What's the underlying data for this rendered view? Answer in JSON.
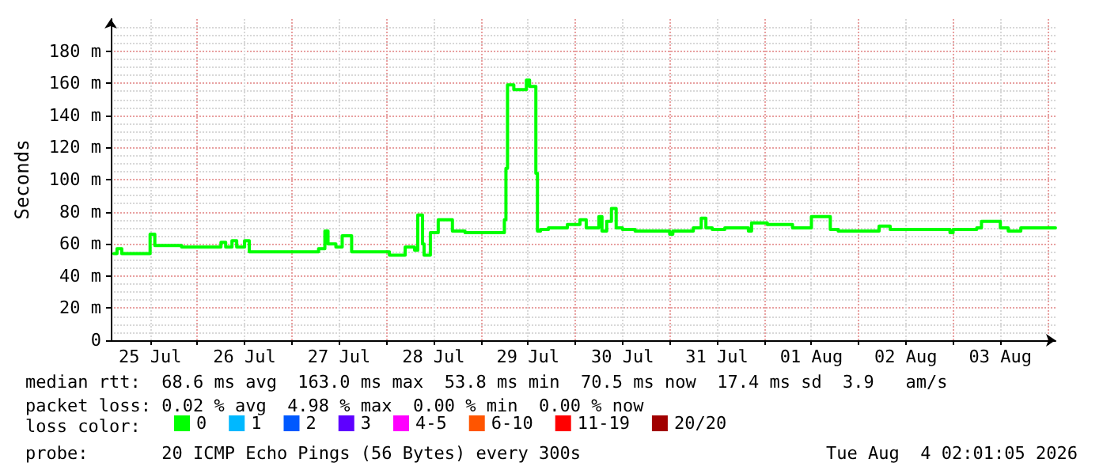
{
  "chart_data": {
    "type": "step",
    "ylabel": "Seconds",
    "legend_title": "loss color:",
    "legend": "bottom left",
    "marker": "none",
    "line_style": "solid",
    "grid": true,
    "x": [
      "2026-07-25T02:48",
      "2026-07-25T03:36",
      "2026-07-25T04:48",
      "2026-07-25T12:00",
      "2026-07-25T13:12",
      "2026-07-25T20:00",
      "2026-07-26T06:00",
      "2026-07-26T07:12",
      "2026-07-26T08:48",
      "2026-07-26T10:00",
      "2026-07-26T12:00",
      "2026-07-26T13:12",
      "2026-07-27T06:48",
      "2026-07-27T08:24",
      "2026-07-27T09:12",
      "2026-07-27T11:12",
      "2026-07-27T12:48",
      "2026-07-27T15:12",
      "2026-07-28T00:48",
      "2026-07-28T04:48",
      "2026-07-28T07:12",
      "2026-07-28T08:00",
      "2026-07-28T09:12",
      "2026-07-28T09:36",
      "2026-07-28T11:12",
      "2026-07-28T13:12",
      "2026-07-28T16:48",
      "2026-07-28T20:00",
      "2026-07-29T06:00",
      "2026-07-29T06:24",
      "2026-07-29T06:48",
      "2026-07-29T08:24",
      "2026-07-29T11:36",
      "2026-07-29T12:24",
      "2026-07-29T14:00",
      "2026-07-29T14:24",
      "2026-07-29T15:12",
      "2026-07-29T17:12",
      "2026-07-29T22:00",
      "2026-07-30T01:12",
      "2026-07-30T02:48",
      "2026-07-30T06:00",
      "2026-07-30T06:48",
      "2026-07-30T08:00",
      "2026-07-30T09:12",
      "2026-07-30T10:24",
      "2026-07-30T12:00",
      "2026-07-30T15:12",
      "2026-07-31T00:00",
      "2026-07-31T00:48",
      "2026-07-31T06:00",
      "2026-07-31T08:00",
      "2026-07-31T09:12",
      "2026-07-31T10:48",
      "2026-07-31T14:00",
      "2026-07-31T20:00",
      "2026-07-31T20:48",
      "2026-08-01T00:48",
      "2026-08-01T07:12",
      "2026-08-01T12:00",
      "2026-08-01T16:48",
      "2026-08-01T18:48",
      "2026-08-02T05:12",
      "2026-08-02T08:00",
      "2026-08-02T23:12",
      "2026-08-03T00:00",
      "2026-08-03T06:00",
      "2026-08-03T07:12",
      "2026-08-03T12:00",
      "2026-08-03T14:00",
      "2026-08-03T17:12",
      "2026-08-04T02:00"
    ],
    "series": [
      {
        "name": "0",
        "color": "#00ff00",
        "values": [
          54,
          57,
          54,
          66,
          59,
          58,
          61,
          58,
          62,
          58,
          62,
          55,
          57,
          68,
          60,
          58,
          65,
          55,
          53,
          58,
          56,
          78,
          60,
          53,
          67,
          75,
          68,
          67,
          75,
          107,
          159,
          156,
          162,
          158,
          104,
          68,
          69,
          70,
          72,
          75,
          70,
          77,
          68,
          74,
          82,
          70,
          69,
          68,
          66,
          68,
          70,
          76,
          70,
          69,
          70,
          68,
          73,
          72,
          70,
          77,
          69,
          68,
          71,
          69,
          67,
          69,
          70,
          74,
          70,
          68,
          70,
          70
        ]
      },
      {
        "name": "1",
        "color": "#00b8ff",
        "values": [
          null,
          null,
          null,
          null,
          null,
          null,
          null,
          null,
          null,
          null,
          null,
          null,
          null,
          null,
          null,
          null,
          null,
          null,
          null,
          null,
          null,
          null,
          null,
          null,
          null,
          null,
          null,
          null,
          null,
          null,
          null,
          null,
          null,
          null,
          null,
          null,
          null,
          null,
          null,
          null,
          null,
          null,
          null,
          null,
          null,
          null,
          null,
          null,
          null,
          null,
          null,
          null,
          null,
          null,
          null,
          null,
          null,
          null,
          null,
          null,
          null,
          null,
          null,
          null,
          null,
          null,
          null,
          null,
          null,
          null,
          null,
          null
        ]
      },
      {
        "name": "2",
        "color": "#0059ff",
        "values": [
          null,
          null,
          null,
          null,
          null,
          null,
          null,
          null,
          null,
          null,
          null,
          null,
          null,
          null,
          null,
          null,
          null,
          null,
          null,
          null,
          null,
          null,
          null,
          null,
          null,
          null,
          null,
          null,
          null,
          null,
          null,
          null,
          null,
          null,
          null,
          null,
          null,
          null,
          null,
          null,
          null,
          null,
          null,
          null,
          null,
          null,
          null,
          null,
          null,
          null,
          null,
          null,
          null,
          null,
          null,
          null,
          null,
          null,
          null,
          null,
          null,
          null,
          null,
          null,
          null,
          null,
          null,
          null,
          null,
          null,
          null,
          null
        ]
      },
      {
        "name": "3",
        "color": "#5e00ff",
        "values": [
          null,
          null,
          null,
          null,
          null,
          null,
          null,
          null,
          null,
          null,
          null,
          null,
          null,
          null,
          null,
          null,
          null,
          null,
          null,
          null,
          null,
          null,
          null,
          null,
          null,
          null,
          null,
          null,
          null,
          null,
          null,
          null,
          null,
          null,
          null,
          null,
          null,
          null,
          null,
          null,
          null,
          null,
          null,
          null,
          null,
          null,
          null,
          null,
          null,
          null,
          null,
          null,
          null,
          null,
          null,
          null,
          null,
          null,
          null,
          null,
          null,
          null,
          null,
          null,
          null,
          null,
          null,
          null,
          null,
          null,
          null,
          null
        ]
      },
      {
        "name": "4-5",
        "color": "#ff00ff",
        "values": [
          null,
          null,
          null,
          null,
          null,
          null,
          null,
          null,
          null,
          null,
          null,
          null,
          null,
          null,
          null,
          null,
          null,
          null,
          null,
          null,
          null,
          null,
          null,
          null,
          null,
          null,
          null,
          null,
          null,
          null,
          null,
          null,
          null,
          null,
          null,
          null,
          null,
          null,
          null,
          null,
          null,
          null,
          null,
          null,
          null,
          null,
          null,
          null,
          null,
          null,
          null,
          null,
          null,
          null,
          null,
          null,
          null,
          null,
          null,
          null,
          null,
          null,
          null,
          null,
          null,
          null,
          null,
          null,
          null,
          null,
          null,
          null
        ]
      },
      {
        "name": "6-10",
        "color": "#ff5500",
        "values": [
          null,
          null,
          null,
          null,
          null,
          null,
          null,
          null,
          null,
          null,
          null,
          null,
          null,
          null,
          null,
          null,
          null,
          null,
          null,
          null,
          null,
          null,
          null,
          null,
          null,
          null,
          null,
          null,
          null,
          null,
          null,
          null,
          null,
          null,
          null,
          null,
          null,
          null,
          null,
          null,
          null,
          null,
          null,
          null,
          null,
          null,
          null,
          null,
          null,
          null,
          null,
          null,
          null,
          null,
          null,
          null,
          null,
          null,
          null,
          null,
          null,
          null,
          null,
          null,
          null,
          null,
          null,
          null,
          null,
          null,
          null,
          null
        ]
      },
      {
        "name": "11-19",
        "color": "#ff0000",
        "values": [
          null,
          null,
          null,
          null,
          null,
          null,
          null,
          null,
          null,
          null,
          null,
          null,
          null,
          null,
          null,
          null,
          null,
          null,
          null,
          null,
          null,
          null,
          null,
          null,
          null,
          null,
          null,
          null,
          null,
          null,
          null,
          null,
          null,
          null,
          null,
          null,
          null,
          null,
          null,
          null,
          null,
          null,
          null,
          null,
          null,
          null,
          null,
          null,
          null,
          null,
          null,
          null,
          null,
          null,
          null,
          null,
          null,
          null,
          null,
          null,
          null,
          null,
          null,
          null,
          null,
          null,
          null,
          null,
          null,
          null,
          null,
          null
        ]
      },
      {
        "name": "20/20",
        "color": "#a10000",
        "values": [
          null,
          null,
          null,
          null,
          null,
          null,
          null,
          null,
          null,
          null,
          null,
          null,
          null,
          null,
          null,
          null,
          null,
          null,
          null,
          null,
          null,
          null,
          null,
          null,
          null,
          null,
          null,
          null,
          null,
          null,
          null,
          null,
          null,
          null,
          null,
          null,
          null,
          null,
          null,
          null,
          null,
          null,
          null,
          null,
          null,
          null,
          null,
          null,
          null,
          null,
          null,
          null,
          null,
          null,
          null,
          null,
          null,
          null,
          null,
          null,
          null,
          null,
          null,
          null,
          null,
          null,
          null,
          null,
          null,
          null,
          null,
          null
        ]
      }
    ],
    "xlim": [
      "2026-07-25T02:01",
      "2026-08-04T02:01"
    ],
    "xticks": [
      {
        "value": "2026-07-25T12:00",
        "label": "25 Jul"
      },
      {
        "value": "2026-07-26T00:00",
        "label": null
      },
      {
        "value": "2026-07-26T12:00",
        "label": "26 Jul"
      },
      {
        "value": "2026-07-27T00:00",
        "label": null
      },
      {
        "value": "2026-07-27T12:00",
        "label": "27 Jul"
      },
      {
        "value": "2026-07-28T00:00",
        "label": null
      },
      {
        "value": "2026-07-28T12:00",
        "label": "28 Jul"
      },
      {
        "value": "2026-07-29T00:00",
        "label": null
      },
      {
        "value": "2026-07-29T12:00",
        "label": "29 Jul"
      },
      {
        "value": "2026-07-30T00:00",
        "label": null
      },
      {
        "value": "2026-07-30T12:00",
        "label": "30 Jul"
      },
      {
        "value": "2026-07-31T00:00",
        "label": null
      },
      {
        "value": "2026-07-31T12:00",
        "label": "31 Jul"
      },
      {
        "value": "2026-08-01T00:00",
        "label": null
      },
      {
        "value": "2026-08-01T12:00",
        "label": "01 Aug"
      },
      {
        "value": "2026-08-02T00:00",
        "label": null
      },
      {
        "value": "2026-08-02T12:00",
        "label": "02 Aug"
      },
      {
        "value": "2026-08-03T00:00",
        "label": null
      },
      {
        "value": "2026-08-03T12:00",
        "label": "03 Aug"
      },
      {
        "value": "2026-08-04T00:00",
        "label": null
      }
    ],
    "ylim": [
      0,
      200
    ],
    "yticks": [
      0,
      {
        "value": 20,
        "label": "20 m"
      },
      {
        "value": 40,
        "label": "40 m"
      },
      {
        "value": 60,
        "label": "60 m"
      },
      {
        "value": 80,
        "label": "80 m"
      },
      {
        "value": 100,
        "label": "100 m"
      },
      {
        "value": 120,
        "label": "120 m"
      },
      {
        "value": 140,
        "label": "140 m"
      },
      {
        "value": 160,
        "label": "160 m"
      },
      {
        "value": 180,
        "label": "180 m"
      }
    ],
    "annotations": [
      "median rtt:  68.6 ms avg  163.0 ms max  53.8 ms min  70.5 ms now  17.4 ms sd  3.9   am/s",
      "packet loss: 0.02 % avg  4.98 % max  0.00 % min  0.00 % now",
      "probe:       20 ICMP Echo Pings (56 Bytes) every 300s",
      "Tue Aug  4 02:01:05 2026"
    ]
  }
}
